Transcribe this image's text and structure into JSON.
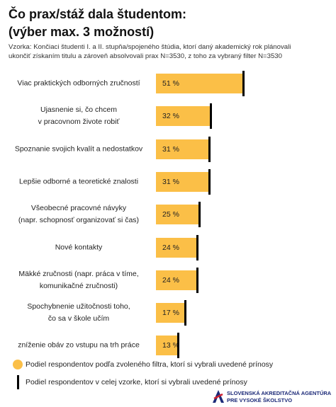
{
  "chart_data": {
    "type": "bar",
    "title": "Čo prax/stáž dala študentom:",
    "subtitle": "(výber max. 3 možností)",
    "note": "Vzorka: Končiaci študenti I. a II. stupňa/spojeného štúdia, ktorí daný akademický rok plánovali\nukončiť získaním titulu a zároveň absolvovali prax N=3530, z toho za vybraný filter N=3530",
    "categories": [
      "Viac praktických odborných zručností",
      "Ujasnenie si, čo chcem\nv pracovnom živote robiť",
      "Spoznanie svojich kvalít a nedostatkov",
      "Lepšie odborné a teoretické znalosti",
      "Všeobecné pracovné návyky\n(napr. schopnosť organizovať si čas)",
      "Nové kontakty",
      "Mäkké zručnosti (napr. práca v tíme,\nkomunikačné zručnosti)",
      "Spochybnenie užitočnosti toho,\nčo sa v škole učím",
      "zníženie obáv zo vstupu na trh práce"
    ],
    "series": [
      {
        "name": "Podiel respondentov podľa zvoleného filtra, ktorí si vybrali uvedené prínosy",
        "color": "#fbbf47",
        "values": [
          51,
          32,
          31,
          31,
          25,
          24,
          24,
          17,
          13
        ],
        "value_labels": [
          "51 %",
          "32 %",
          "31 %",
          "31 %",
          "25 %",
          "24 %",
          "24 %",
          "17 %",
          "13 %"
        ]
      },
      {
        "name": "Podiel respondentov v celej vzorke, ktorí si vybrali uvedené prínosy",
        "color": "#000000",
        "values": [
          51,
          32,
          31,
          31,
          25,
          24,
          24,
          17,
          13
        ]
      }
    ]
  },
  "logo": [
    "SLOVENSKÁ AKREDITAČNÁ AGENTÚRA",
    "PRE VYSOKÉ ŠKOLSTVO"
  ]
}
